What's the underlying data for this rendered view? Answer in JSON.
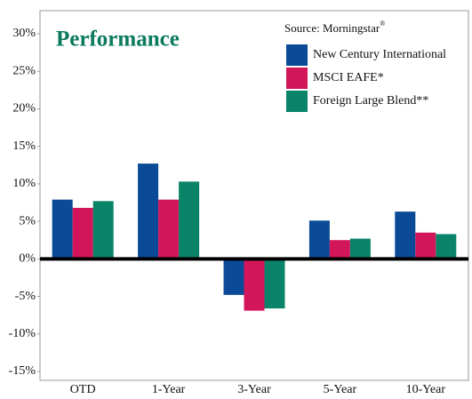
{
  "chart_data": {
    "type": "bar",
    "title": "Performance",
    "source": "Source: Morningstar",
    "source_mark": "®",
    "categories": [
      "OTD",
      "1-Year",
      "3-Year",
      "5-Year",
      "10-Year"
    ],
    "series": [
      {
        "name": "New Century International",
        "color": "#0b4a97",
        "values": [
          7.9,
          12.7,
          -4.8,
          5.1,
          6.3
        ]
      },
      {
        "name": "MSCI EAFE*",
        "color": "#d3155a",
        "values": [
          6.8,
          7.9,
          -6.9,
          2.5,
          3.5
        ]
      },
      {
        "name": "Foreign Large Blend**",
        "color": "#0a8468",
        "values": [
          7.7,
          10.3,
          -6.6,
          2.7,
          3.3
        ]
      }
    ],
    "ylim": [
      -15,
      30
    ],
    "yticks": [
      {
        "value": -15,
        "label": "-15%"
      },
      {
        "value": -10,
        "label": "-10%"
      },
      {
        "value": -5,
        "label": "-5%"
      },
      {
        "value": 0,
        "label": "0%"
      },
      {
        "value": 5,
        "label": "5%"
      },
      {
        "value": 10,
        "label": "10%"
      },
      {
        "value": 15,
        "label": "15%"
      },
      {
        "value": 20,
        "label": "20%"
      },
      {
        "value": 25,
        "label": "25%"
      },
      {
        "value": 30,
        "label": "30%"
      }
    ],
    "legend": "upper right"
  }
}
